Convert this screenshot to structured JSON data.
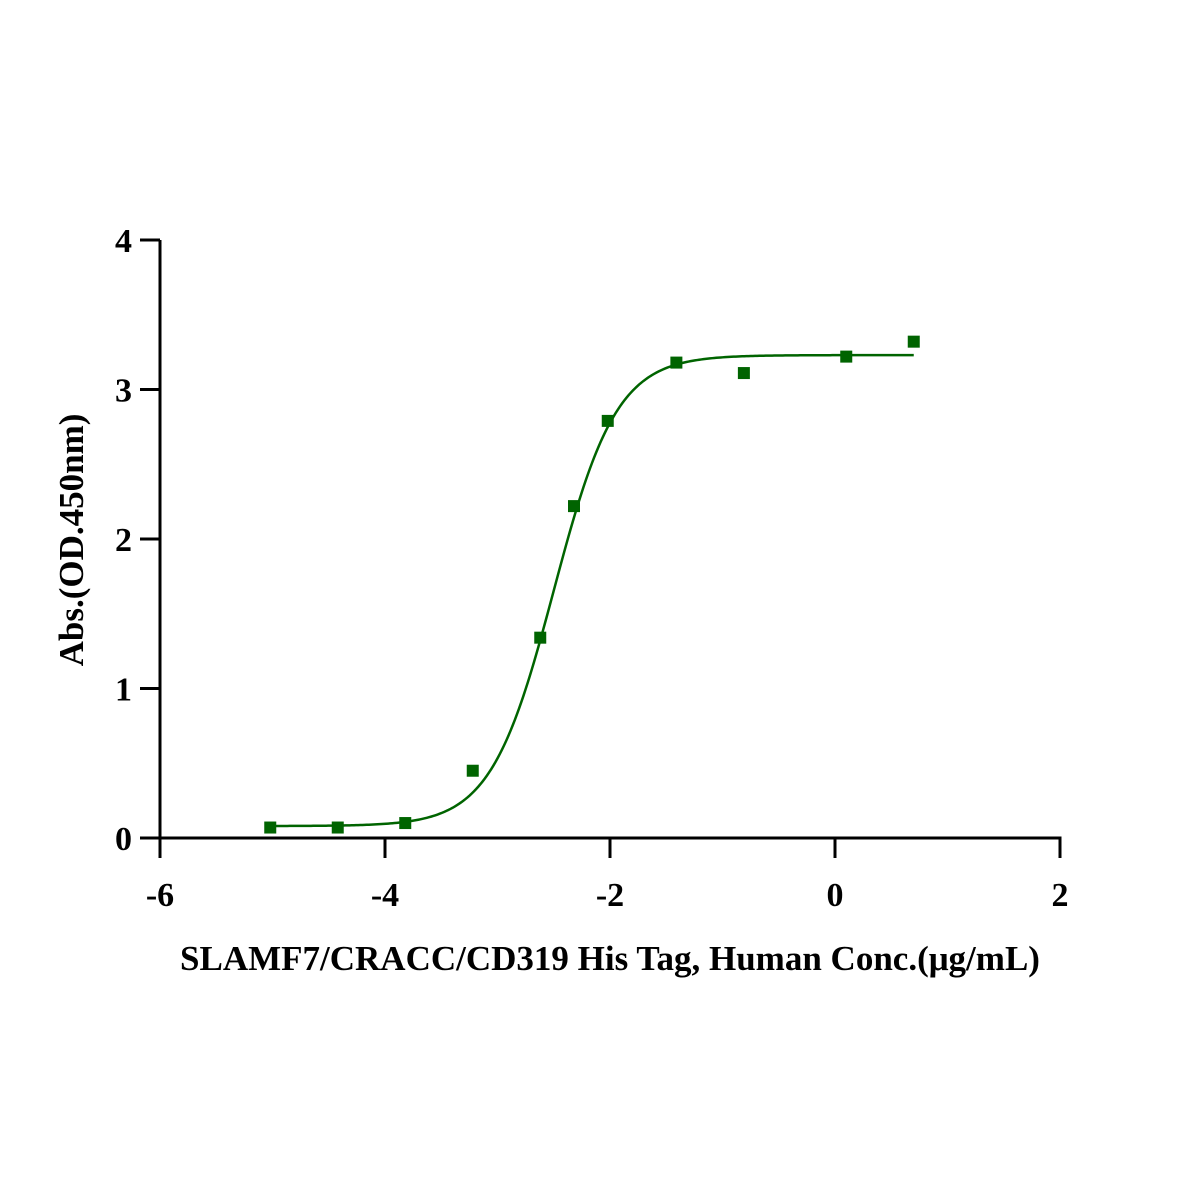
{
  "chart_data": {
    "type": "scatter",
    "title": "",
    "xlabel": "SLAMF7/CRACC/CD319 His Tag, Human Conc.(μg/mL)",
    "ylabel": "Abs.(OD.450nm)",
    "xlim": [
      -6,
      2
    ],
    "ylim": [
      0,
      4
    ],
    "xticks": [
      -6,
      -4,
      -2,
      0,
      2
    ],
    "yticks": [
      0,
      1,
      2,
      3,
      4
    ],
    "grid": false,
    "legend": "none",
    "series": [
      {
        "points": [
          {
            "x": -5.02,
            "y": 0.07
          },
          {
            "x": -4.42,
            "y": 0.07
          },
          {
            "x": -3.82,
            "y": 0.1
          },
          {
            "x": -3.22,
            "y": 0.45
          },
          {
            "x": -2.62,
            "y": 1.34
          },
          {
            "x": -2.32,
            "y": 2.22
          },
          {
            "x": -2.02,
            "y": 2.79
          },
          {
            "x": -1.41,
            "y": 3.18
          },
          {
            "x": -0.81,
            "y": 3.11
          },
          {
            "x": 0.1,
            "y": 3.22
          },
          {
            "x": 0.7,
            "y": 3.32
          }
        ]
      }
    ],
    "fit": {
      "model": "4PL",
      "bottom": 0.08,
      "top": 3.23,
      "log_ec50": -2.5,
      "hill_slope": 1.55,
      "x_range": [
        -5.02,
        0.7
      ]
    },
    "colors": {
      "series": "#006400",
      "axis": "#000000"
    }
  }
}
